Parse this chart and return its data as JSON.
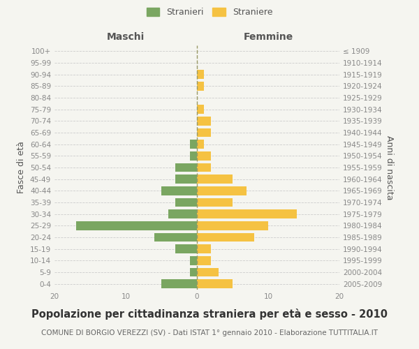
{
  "age_groups": [
    "0-4",
    "5-9",
    "10-14",
    "15-19",
    "20-24",
    "25-29",
    "30-34",
    "35-39",
    "40-44",
    "45-49",
    "50-54",
    "55-59",
    "60-64",
    "65-69",
    "70-74",
    "75-79",
    "80-84",
    "85-89",
    "90-94",
    "95-99",
    "100+"
  ],
  "birth_years": [
    "2005-2009",
    "2000-2004",
    "1995-1999",
    "1990-1994",
    "1985-1989",
    "1980-1984",
    "1975-1979",
    "1970-1974",
    "1965-1969",
    "1960-1964",
    "1955-1959",
    "1950-1954",
    "1945-1949",
    "1940-1944",
    "1935-1939",
    "1930-1934",
    "1925-1929",
    "1920-1924",
    "1915-1919",
    "1910-1914",
    "≤ 1909"
  ],
  "males": [
    5,
    1,
    1,
    3,
    6,
    17,
    4,
    3,
    5,
    3,
    3,
    1,
    1,
    0,
    0,
    0,
    0,
    0,
    0,
    0,
    0
  ],
  "females": [
    5,
    3,
    2,
    2,
    8,
    10,
    14,
    5,
    7,
    5,
    2,
    2,
    1,
    2,
    2,
    1,
    0,
    1,
    1,
    0,
    0
  ],
  "male_color": "#7aa661",
  "female_color": "#f5c242",
  "background_color": "#f5f5f0",
  "title": "Popolazione per cittadinanza straniera per età e sesso - 2010",
  "subtitle": "COMUNE DI BORGIO VEREZZI (SV) - Dati ISTAT 1° gennaio 2010 - Elaborazione TUTTITALIA.IT",
  "legend_male": "Stranieri",
  "legend_female": "Straniere",
  "xlabel_left": "Maschi",
  "xlabel_right": "Femmine",
  "ylabel_left": "Fasce di età",
  "ylabel_right": "Anni di nascita",
  "xlim": 20,
  "grid_color": "#cccccc",
  "center_line_color": "#999966",
  "tick_label_color": "#888888",
  "axis_label_color": "#555555",
  "title_fontsize": 10.5,
  "subtitle_fontsize": 7.5,
  "tick_fontsize": 7.5,
  "label_fontsize": 9
}
